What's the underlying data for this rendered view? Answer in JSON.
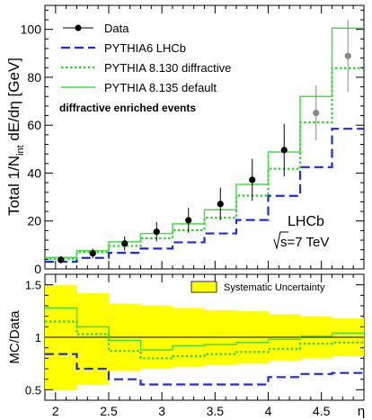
{
  "chart_data": [
    {
      "type": "line",
      "title": "",
      "xlabel": "η",
      "ylabel_main": "Total 1/N",
      "ylabel_sub": "int",
      "ylabel_rest": " dE/dη [GeV]",
      "xlim": [
        1.9,
        4.9
      ],
      "ylim": [
        0,
        110
      ],
      "x_ticks": [
        2,
        2.5,
        3,
        3.5,
        4,
        4.5
      ],
      "x_tick_labels": [
        "2",
        "2.5",
        "3",
        "3.5",
        "4",
        "4.5"
      ],
      "y_ticks": [
        0,
        20,
        40,
        60,
        80,
        100
      ],
      "y_tick_labels": [
        "0",
        "20",
        "40",
        "60",
        "80",
        "100"
      ],
      "bin_edges": [
        1.9,
        2.2,
        2.5,
        2.8,
        3.1,
        3.4,
        3.7,
        4.0,
        4.3,
        4.6,
        4.9
      ],
      "data_points": {
        "name": "Data",
        "x": [
          2.05,
          2.35,
          2.65,
          2.95,
          3.25,
          3.55,
          3.85,
          4.15,
          4.45,
          4.75
        ],
        "y": [
          3.8,
          6.5,
          10.6,
          15.5,
          20.3,
          27.1,
          37.2,
          49.6,
          65.1,
          88.9
        ],
        "err": [
          1.5,
          2.0,
          3.0,
          4.0,
          5.2,
          6.8,
          8.8,
          11.0,
          11.5,
          15.0
        ]
      },
      "series": [
        {
          "name": "PYTHIA6 LHCb",
          "style": "dashed",
          "color": "#1f2ae0",
          "values": [
            3.0,
            4.6,
            6.7,
            8.5,
            11.1,
            14.8,
            20.4,
            30.5,
            42.5,
            58.5
          ]
        },
        {
          "name": "PYTHIA 8.130 diffractive",
          "style": "dotted",
          "color": "#33cc33",
          "values": [
            4.2,
            7.0,
            9.6,
            12.8,
            16.2,
            21.4,
            30.6,
            41.8,
            61.2,
            83.8
          ]
        },
        {
          "name": "PYTHIA 8.135 default",
          "style": "solid",
          "color": "#44dd44",
          "values": [
            4.8,
            7.6,
            11.3,
            14.8,
            18.8,
            24.7,
            35.3,
            48.8,
            72.0,
            100.5
          ]
        }
      ],
      "annotations": {
        "caption": "diffractive enriched events",
        "experiment": "LHCb",
        "energy_sqrt": "s",
        "energy_rest": "=7 TeV"
      }
    },
    {
      "type": "line",
      "ylabel": "MC/Data",
      "ylim": [
        0.4,
        1.6
      ],
      "y_ticks": [
        0.5,
        1,
        1.5
      ],
      "y_tick_labels": [
        "0.5",
        "1",
        "1.5"
      ],
      "reference_line": 1,
      "band": {
        "name": "Systematic Uncertainty",
        "color": "#ffff00",
        "low": [
          0.5,
          0.55,
          0.68,
          0.7,
          0.72,
          0.74,
          0.75,
          0.78,
          0.8,
          0.82
        ],
        "high": [
          1.5,
          1.42,
          1.32,
          1.3,
          1.28,
          1.26,
          1.25,
          1.22,
          1.2,
          1.18
        ]
      },
      "series": [
        {
          "name": "PYTHIA6 LHCb",
          "values": [
            0.84,
            0.7,
            0.6,
            0.55,
            0.55,
            0.55,
            0.55,
            0.62,
            0.65,
            0.66
          ]
        },
        {
          "name": "PYTHIA 8.130 diffractive",
          "values": [
            1.15,
            1.03,
            0.87,
            0.8,
            0.82,
            0.84,
            0.86,
            0.89,
            0.94,
            0.95
          ]
        },
        {
          "name": "PYTHIA 8.135 default",
          "values": [
            1.28,
            1.1,
            0.97,
            0.88,
            0.92,
            0.93,
            0.95,
            0.98,
            1.01,
            1.04
          ]
        }
      ]
    }
  ]
}
